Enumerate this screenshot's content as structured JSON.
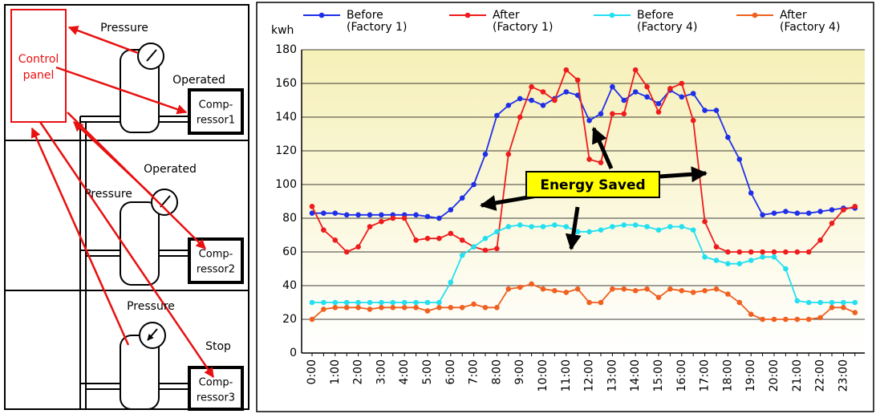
{
  "diagram": {
    "control_panel": [
      "Control",
      "panel"
    ],
    "sections": [
      {
        "pressure": "Pressure",
        "state": "Operated",
        "compressor": [
          "Comp-",
          "ressor1"
        ]
      },
      {
        "pressure": "Pressure",
        "state": "Operated",
        "compressor": [
          "Comp-",
          "ressor2"
        ]
      },
      {
        "pressure": "Pressure",
        "state": "Stop",
        "compressor": [
          "Comp-",
          "ressor3"
        ]
      }
    ]
  },
  "chart_data": {
    "type": "line",
    "ylabel": "kwh",
    "annotation": "Energy Saved",
    "categories": [
      "0:00",
      null,
      "1:00",
      null,
      "2:00",
      null,
      "3:00",
      null,
      "4:00",
      null,
      "5:00",
      null,
      "6:00",
      null,
      "7:00",
      null,
      "8:00",
      null,
      "9:00",
      null,
      "10:00",
      null,
      "11:00",
      null,
      "12:00",
      null,
      "13:00",
      null,
      "14:00",
      null,
      "15:00",
      null,
      "16:00",
      null,
      "17:00",
      null,
      "18:00",
      null,
      "19:00",
      null,
      "20:00",
      null,
      "21:00",
      null,
      "22:00",
      null,
      "23:00",
      null
    ],
    "series": [
      {
        "name": "Before (Factory 1)",
        "color": "#1f2fe8",
        "values": [
          83,
          83,
          83,
          82,
          82,
          82,
          82,
          82,
          82,
          82,
          81,
          80,
          85,
          92,
          100,
          118,
          141,
          147,
          151,
          150,
          147,
          151,
          155,
          153,
          138,
          142,
          158,
          150,
          155,
          152,
          148,
          156,
          152,
          154,
          144,
          144,
          128,
          115,
          95,
          82,
          83,
          84,
          83,
          83,
          84,
          85,
          86,
          86
        ]
      },
      {
        "name": "After (Factory 1)",
        "color": "#ee1c1c",
        "values": [
          87,
          73,
          67,
          60,
          63,
          75,
          78,
          80,
          80,
          67,
          68,
          68,
          71,
          67,
          63,
          61,
          62,
          118,
          140,
          158,
          155,
          150,
          168,
          162,
          115,
          113,
          142,
          142,
          168,
          158,
          143,
          157,
          160,
          138,
          78,
          63,
          60,
          60,
          60,
          60,
          60,
          60,
          60,
          60,
          67,
          77,
          85,
          87
        ]
      },
      {
        "name": "Before (Factory 4)",
        "color": "#22e0f0",
        "values": [
          30,
          30,
          30,
          30,
          30,
          30,
          30,
          30,
          30,
          30,
          30,
          30,
          42,
          58,
          63,
          68,
          72,
          75,
          76,
          75,
          75,
          76,
          75,
          72,
          72,
          73,
          75,
          76,
          76,
          75,
          73,
          75,
          75,
          73,
          57,
          55,
          53,
          53,
          55,
          57,
          57,
          50,
          31,
          30,
          30,
          30,
          30,
          30
        ]
      },
      {
        "name": "After (Factory 4)",
        "color": "#f06020",
        "values": [
          20,
          26,
          27,
          27,
          27,
          26,
          27,
          27,
          27,
          27,
          25,
          27,
          27,
          27,
          29,
          27,
          27,
          38,
          39,
          41,
          38,
          37,
          36,
          38,
          30,
          30,
          38,
          38,
          37,
          38,
          33,
          38,
          37,
          36,
          37,
          38,
          35,
          30,
          23,
          20,
          20,
          20,
          20,
          20,
          21,
          27,
          27,
          24
        ]
      }
    ],
    "ylim": [
      0,
      180
    ],
    "yticks": [
      0,
      20,
      40,
      60,
      80,
      100,
      120,
      140,
      160,
      180
    ],
    "grid": true
  }
}
